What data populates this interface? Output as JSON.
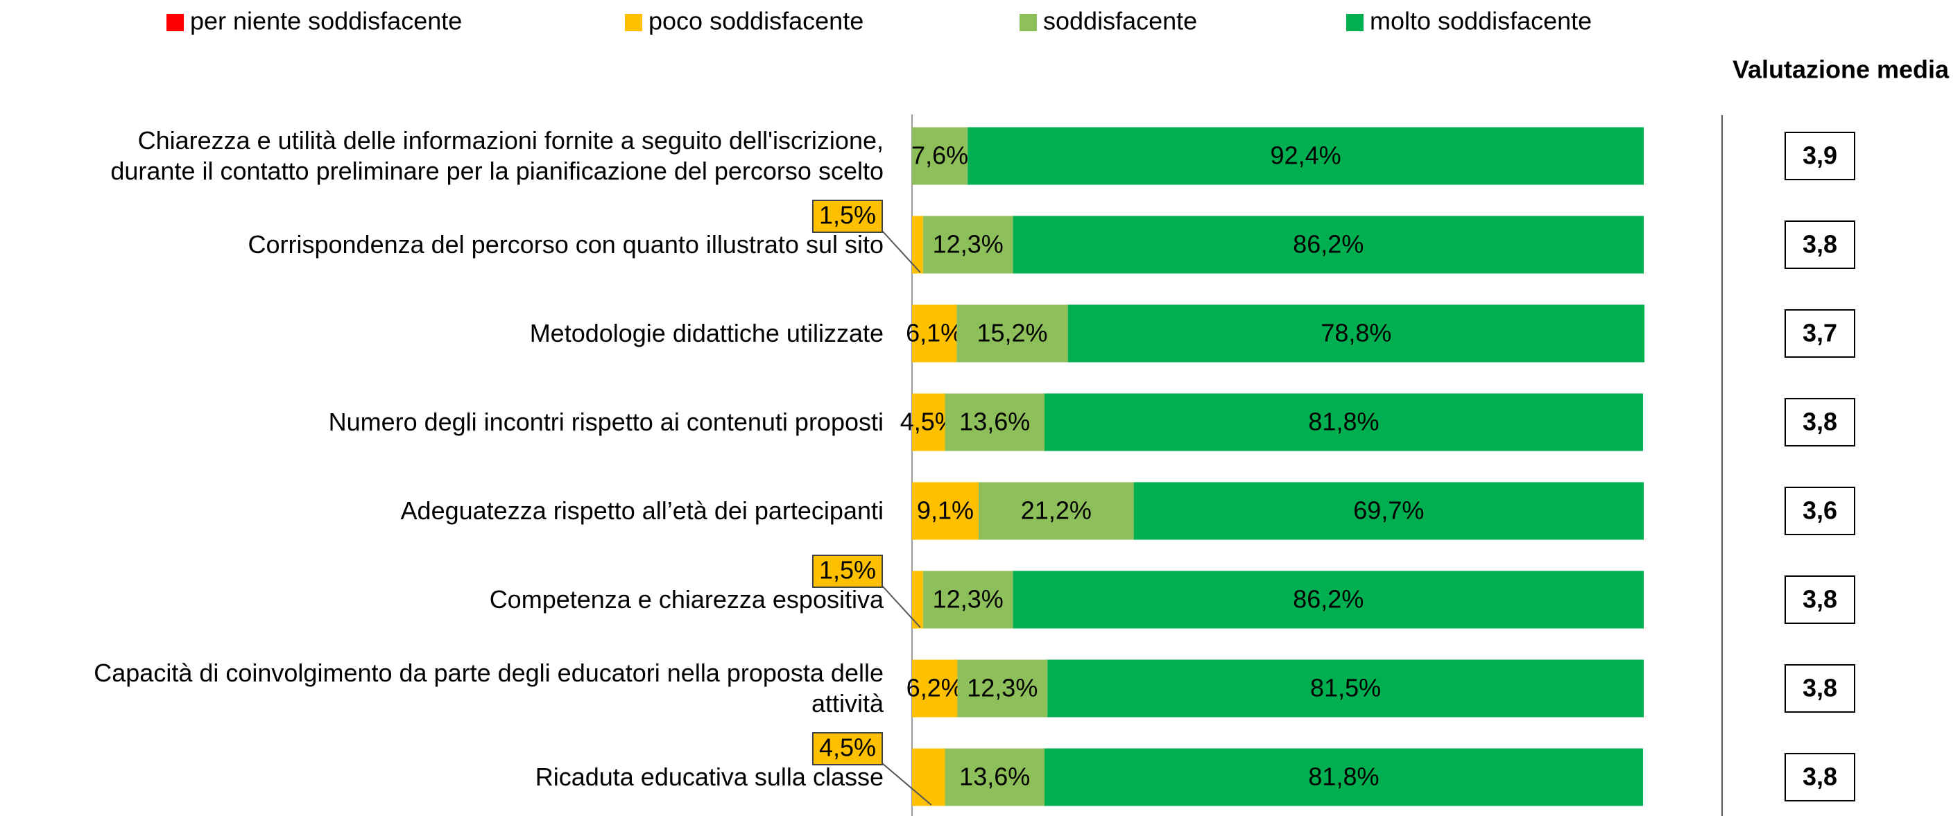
{
  "chart_data": {
    "type": "stacked-bar-horizontal",
    "categories": [
      "Chiarezza e utilità delle informazioni fornite a seguito dell'iscrizione,\ndurante il contatto preliminare per la pianificazione del percorso scelto",
      "Corrispondenza del percorso con quanto illustrato sul sito",
      "Metodologie didattiche utilizzate",
      "Numero degli incontri rispetto ai contenuti proposti",
      "Adeguatezza rispetto all’età dei partecipanti",
      "Competenza e chiarezza espositiva",
      "Capacità di coinvolgimento da parte degli educatori nella proposta delle\nattività",
      "Ricaduta educativa sulla classe"
    ],
    "xlim": [
      0,
      100
    ],
    "series": [
      {
        "name": "per niente soddisfacente",
        "color": "#ff0000",
        "values": [
          0,
          0,
          0,
          0,
          0,
          0,
          0,
          0
        ],
        "value_labels": [
          null,
          null,
          null,
          null,
          null,
          null,
          null,
          null
        ]
      },
      {
        "name": "poco soddisfacente",
        "color": "#ffc000",
        "values": [
          0,
          1.5,
          6.1,
          4.5,
          9.1,
          1.5,
          6.2,
          4.5
        ],
        "value_labels": [
          null,
          "1,5%",
          "6,1%",
          "4,5%",
          "9,1%",
          "1,5%",
          "6,2%",
          "4,5%"
        ]
      },
      {
        "name": "soddisfacente",
        "color": "#8dbf5a",
        "values": [
          7.6,
          12.3,
          15.2,
          13.6,
          21.2,
          12.3,
          12.3,
          13.6
        ],
        "value_labels": [
          "7,6%",
          "12,3%",
          "15,2%",
          "13,6%",
          "21,2%",
          "12,3%",
          "12,3%",
          "13,6%"
        ]
      },
      {
        "name": "molto soddisfacente",
        "color": "#00b050",
        "values": [
          92.4,
          86.2,
          78.8,
          81.8,
          69.7,
          86.2,
          81.5,
          81.8
        ],
        "value_labels": [
          "92,4%",
          "86,2%",
          "78,8%",
          "81,8%",
          "69,7%",
          "86,2%",
          "81,5%",
          "81,8%"
        ]
      }
    ],
    "mean_scores": {
      "title": "Valutazione media",
      "values": [
        3.9,
        3.8,
        3.7,
        3.8,
        3.6,
        3.8,
        3.8,
        3.8
      ],
      "value_labels": [
        "3,9",
        "3,8",
        "3,7",
        "3,8",
        "3,6",
        "3,8",
        "3,8",
        "3,8"
      ]
    }
  }
}
